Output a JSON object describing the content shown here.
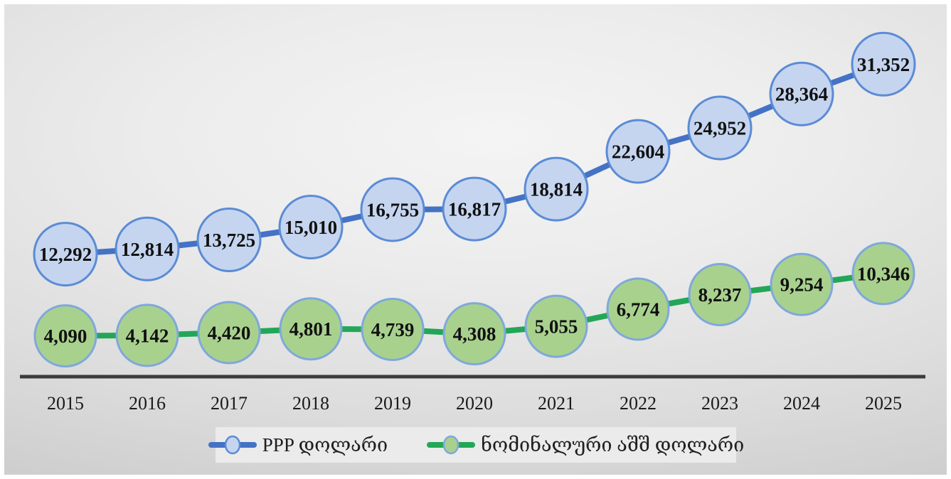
{
  "chart_data": {
    "type": "line",
    "title": "",
    "categories": [
      "2015",
      "2016",
      "2017",
      "2018",
      "2019",
      "2020",
      "2021",
      "2022",
      "2023",
      "2024",
      "2025"
    ],
    "series": [
      {
        "name": "PPP დოლარი",
        "values": [
          12292,
          12814,
          13725,
          15010,
          16755,
          16817,
          18814,
          22604,
          24952,
          28364,
          31352
        ],
        "line_color": "#4472C4",
        "marker_fill": "#C5D5F0",
        "marker_stroke": "#5B8BD5",
        "marker_radius": 44
      },
      {
        "name": "ნომინალური აშშ დოლარი",
        "values": [
          4090,
          4142,
          4420,
          4801,
          4739,
          4308,
          5055,
          6774,
          8237,
          9254,
          10346
        ],
        "line_color": "#22A757",
        "marker_fill": "#A9D18E",
        "marker_stroke": "#7FA8DC",
        "marker_radius": 43
      }
    ],
    "data_labels": "on",
    "label_number_format": "#,##0",
    "xlabel": "",
    "ylabel": "",
    "grid": false,
    "legend_position": "bottom",
    "axis_color": "#3C3C3C",
    "label_color": "#111111",
    "tick_label_color": "#1a1a1a"
  }
}
